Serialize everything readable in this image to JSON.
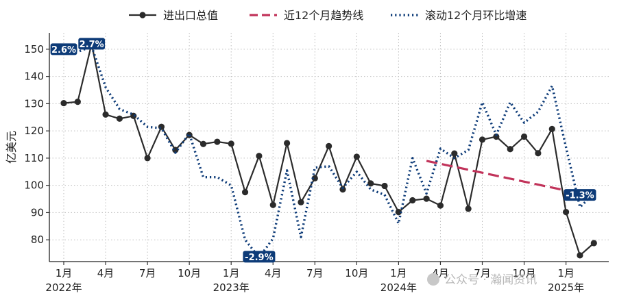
{
  "chart_data": {
    "type": "line",
    "ylabel": "亿美元",
    "ylim": [
      72,
      156
    ],
    "yticks": [
      80,
      90,
      100,
      110,
      120,
      130,
      140,
      150
    ],
    "x_months": [
      "2022-01",
      "2022-02",
      "2022-03",
      "2022-04",
      "2022-05",
      "2022-06",
      "2022-07",
      "2022-08",
      "2022-09",
      "2022-10",
      "2022-11",
      "2022-12",
      "2023-01",
      "2023-02",
      "2023-03",
      "2023-04",
      "2023-05",
      "2023-06",
      "2023-07",
      "2023-08",
      "2023-09",
      "2023-10",
      "2023-11",
      "2023-12",
      "2024-01",
      "2024-02",
      "2024-03",
      "2024-04",
      "2024-05",
      "2024-06",
      "2024-07",
      "2024-08",
      "2024-09",
      "2024-10",
      "2024-11",
      "2024-12",
      "2025-01",
      "2025-02",
      "2025-03"
    ],
    "x_tick_labels": [
      {
        "month": "2022-01",
        "top": "1月",
        "bottom": "2022年"
      },
      {
        "month": "2022-04",
        "top": "4月",
        "bottom": ""
      },
      {
        "month": "2022-07",
        "top": "7月",
        "bottom": ""
      },
      {
        "month": "2022-10",
        "top": "10月",
        "bottom": ""
      },
      {
        "month": "2023-01",
        "top": "1月",
        "bottom": "2023年"
      },
      {
        "month": "2023-04",
        "top": "4月",
        "bottom": ""
      },
      {
        "month": "2023-07",
        "top": "7月",
        "bottom": ""
      },
      {
        "month": "2023-10",
        "top": "10月",
        "bottom": ""
      },
      {
        "month": "2024-01",
        "top": "1月",
        "bottom": "2024年"
      },
      {
        "month": "2024-04",
        "top": "4月",
        "bottom": ""
      },
      {
        "month": "2024-07",
        "top": "7月",
        "bottom": ""
      },
      {
        "month": "2024-10",
        "top": "10月",
        "bottom": ""
      },
      {
        "month": "2025-01",
        "top": "1月",
        "bottom": "2025年"
      }
    ],
    "series": [
      {
        "name": "进出口总值",
        "color": "#2b2b2b",
        "style": "solid-markers",
        "start": "2022-01",
        "values": [
          130.2,
          130.7,
          152.0,
          126.0,
          124.5,
          125.5,
          110.0,
          121.5,
          113.0,
          118.5,
          115.2,
          116.0,
          115.3,
          97.5,
          110.8,
          92.8,
          115.5,
          93.8,
          102.6,
          114.4,
          98.5,
          110.5,
          100.7,
          99.8,
          90.2,
          94.5,
          95.1,
          92.6,
          111.7,
          91.4,
          116.8,
          117.9,
          113.3,
          117.9,
          111.8,
          120.7,
          90.2,
          74.3,
          78.8
        ]
      },
      {
        "name": "近12个月趋势线",
        "color": "#c1335a",
        "style": "dashed",
        "start": "2024-03",
        "values": [
          109.0,
          97.0
        ],
        "span_months": 12
      },
      {
        "name": "滚动12个月环比增速",
        "color": "#0d3b78",
        "style": "dotted",
        "start": "2022-01",
        "values": [
          151.0,
          149.0,
          151.0,
          136.0,
          128.0,
          126.0,
          121.5,
          121.0,
          112.0,
          119.0,
          103.0,
          103.0,
          100.0,
          80.0,
          73.5,
          80.5,
          105.5,
          81.0,
          106.5,
          107.0,
          99.0,
          105.0,
          98.5,
          96.5,
          86.0,
          110.0,
          97.0,
          113.5,
          110.0,
          113.0,
          130.5,
          118.5,
          130.5,
          123.0,
          127.0,
          136.5,
          114.0,
          92.0,
          97.0
        ]
      }
    ],
    "annotations": [
      {
        "text": "2.6%",
        "month": "2022-01",
        "y": 150.0
      },
      {
        "text": "2.7%",
        "month": "2022-03",
        "y": 152.0
      },
      {
        "text": "-2.9%",
        "month": "2023-03",
        "y": 73.8
      },
      {
        "text": "-1.3%",
        "month": "2025-02",
        "y": 96.5
      }
    ],
    "legend_position": "top-center",
    "grid": true
  },
  "watermark": {
    "text": "公众号 · 瀚闻资讯"
  }
}
